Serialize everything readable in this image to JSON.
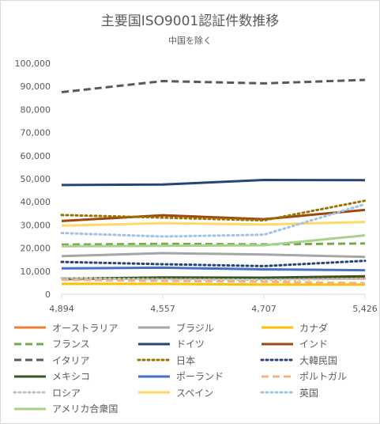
{
  "chart_data": {
    "type": "line",
    "title": "主要国ISO9001認証件数推移",
    "subtitle": "中国を除く",
    "categories": [
      "4,894",
      "4,557",
      "4,707",
      "5,426"
    ],
    "ylim": [
      0,
      100000
    ],
    "y_ticks": [
      "0",
      "10,000",
      "20,000",
      "30,000",
      "40,000",
      "50,000",
      "60,000",
      "70,000",
      "80,000",
      "90,000",
      "100,000"
    ],
    "grid": false,
    "legend_position": "bottom",
    "series": [
      {
        "name": "オーストラリア",
        "color": "#ed7d31",
        "dash": "solid",
        "values": [
          6500,
          7000,
          7000,
          6800
        ]
      },
      {
        "name": "ブラジル",
        "color": "#a5a5a5",
        "dash": "solid",
        "values": [
          16500,
          17800,
          17200,
          16200
        ]
      },
      {
        "name": "カナダ",
        "color": "#ffc000",
        "dash": "solid",
        "values": [
          4500,
          4500,
          4200,
          4200
        ]
      },
      {
        "name": "フランス",
        "color": "#70ad47",
        "dash": "dash",
        "values": [
          21500,
          21800,
          21600,
          22000
        ]
      },
      {
        "name": "ドイツ",
        "color": "#264478",
        "dash": "solid",
        "values": [
          47300,
          47500,
          49500,
          49400
        ]
      },
      {
        "name": "インド",
        "color": "#9e480e",
        "dash": "solid",
        "values": [
          31700,
          34200,
          32500,
          36500
        ]
      },
      {
        "name": "イタリア",
        "color": "#595959",
        "dash": "dash",
        "values": [
          87500,
          92300,
          91300,
          92800
        ]
      },
      {
        "name": "日本",
        "color": "#997300",
        "dash": "dot",
        "values": [
          34300,
          33200,
          32000,
          40500
        ]
      },
      {
        "name": "大韓民国",
        "color": "#264478",
        "dash": "dot",
        "values": [
          14000,
          13000,
          12200,
          14500
        ]
      },
      {
        "name": "メキシコ",
        "color": "#375623",
        "dash": "solid",
        "values": [
          6700,
          7300,
          7200,
          7800
        ]
      },
      {
        "name": "ポーランド",
        "color": "#4472c4",
        "dash": "solid",
        "values": [
          11200,
          11500,
          10800,
          10400
        ]
      },
      {
        "name": "ポルトガル",
        "color": "#f4b183",
        "dash": "dash",
        "values": [
          6300,
          5800,
          5400,
          4800
        ]
      },
      {
        "name": "ロシア",
        "color": "#bfbfbf",
        "dash": "dot",
        "values": [
          7000,
          6500,
          6300,
          6700
        ]
      },
      {
        "name": "スペイン",
        "color": "#ffd966",
        "dash": "solid",
        "values": [
          29700,
          30800,
          30200,
          31300
        ]
      },
      {
        "name": "英国",
        "color": "#9dc3e6",
        "dash": "dot",
        "values": [
          26500,
          25000,
          25800,
          39000
        ]
      },
      {
        "name": "アメリカ合衆国",
        "color": "#a9d18e",
        "dash": "solid",
        "values": [
          20800,
          21000,
          21200,
          25500
        ]
      }
    ]
  }
}
